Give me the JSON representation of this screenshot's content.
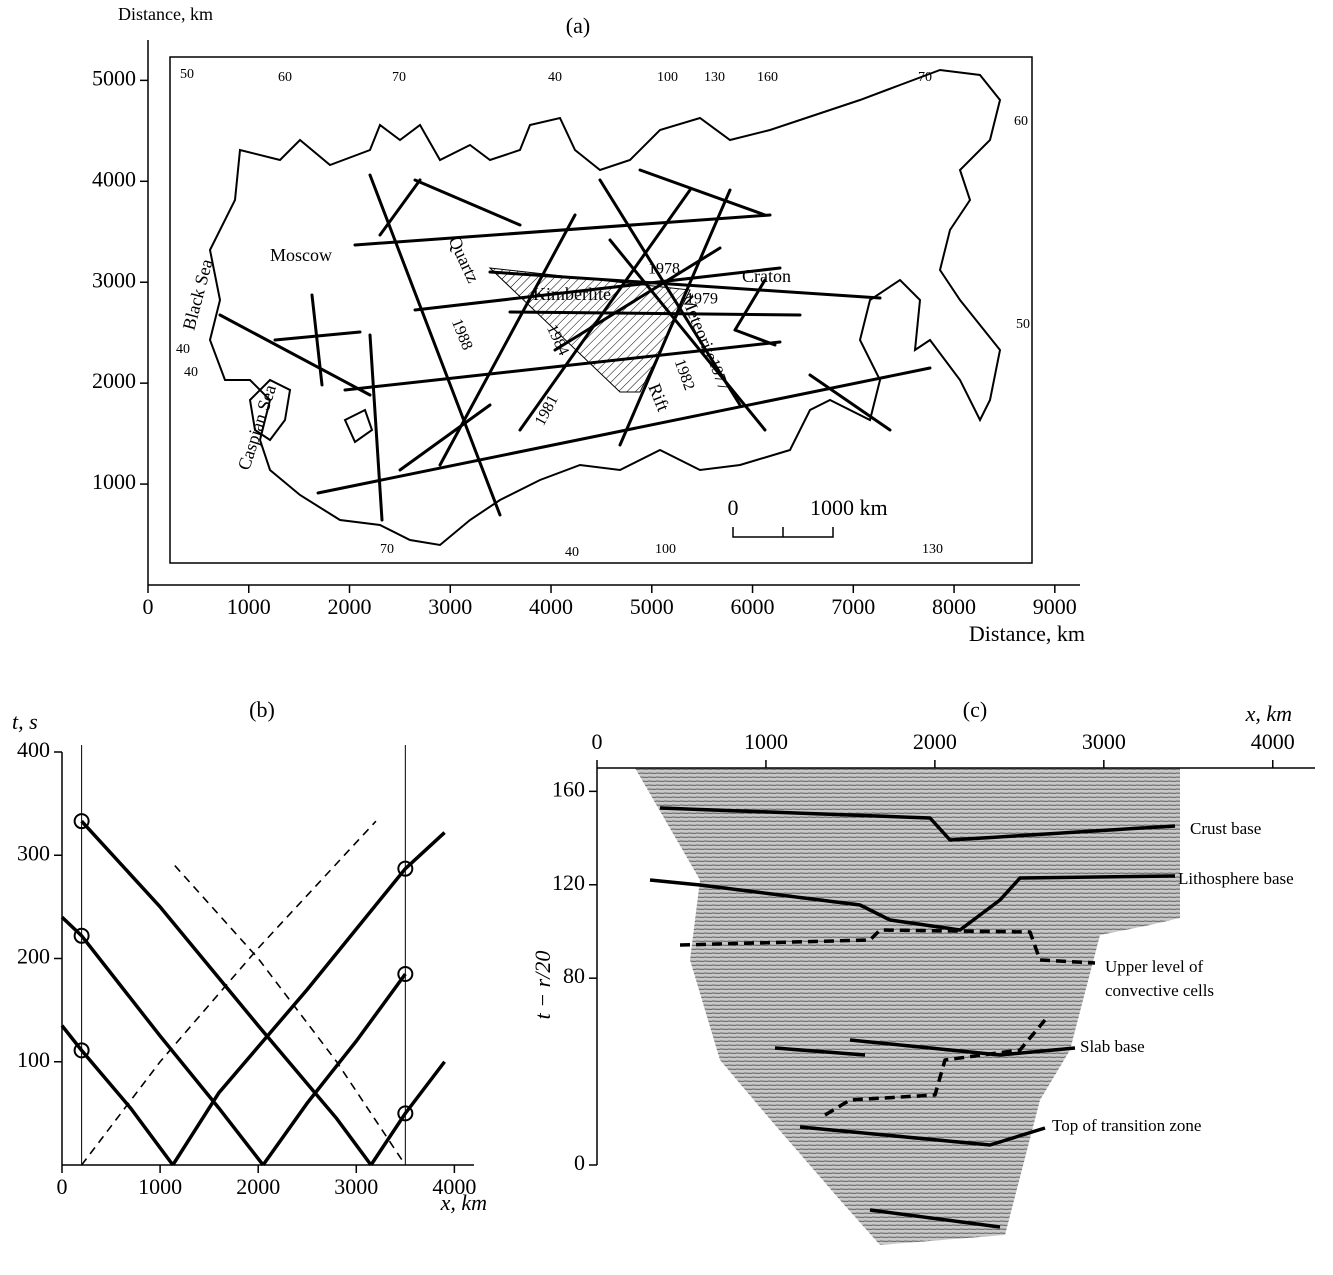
{
  "chart_data": [
    {
      "type": "map",
      "title": "(a)",
      "xlabel": "Distance, km",
      "ylabel": "Distance, km",
      "xlim": [
        0,
        9250
      ],
      "ylim": [
        0,
        5400
      ],
      "xticks": [
        0,
        1000,
        2000,
        3000,
        4000,
        5000,
        6000,
        7000,
        8000,
        9000
      ],
      "yticks": [
        1000,
        2000,
        3000,
        4000,
        5000
      ],
      "graticule_labels": [
        "50",
        "60",
        "70",
        "40",
        "100",
        "130",
        "160",
        "70",
        "60",
        "50",
        "40",
        "40",
        "70",
        "40",
        "100",
        "130"
      ],
      "place_labels": [
        "Moscow",
        "Black Sea",
        "Caspian Sea",
        "Craton",
        "Quartz",
        "Kimberlite",
        "Meteorite",
        "Rift"
      ],
      "profile_labels": [
        "1988",
        "1981",
        "1984",
        "1978",
        "1979",
        "1977",
        "1982"
      ],
      "scale_labels": [
        "0",
        "1000 km"
      ]
    },
    {
      "type": "line",
      "title": "(b)",
      "xlabel": "x, km",
      "ylabel": "t, s",
      "xlim": [
        0,
        4200
      ],
      "ylim": [
        0,
        400
      ],
      "xticks": [
        0,
        1000,
        2000,
        3000,
        4000
      ],
      "yticks": [
        100,
        200,
        300,
        400
      ],
      "source_x": [
        200,
        3500
      ],
      "series": [
        {
          "color": "#000000",
          "dash": false,
          "x": [
            200,
            1000,
            2000,
            2800,
            3150
          ],
          "values": [
            333,
            250,
            135,
            45,
            0
          ]
        },
        {
          "color": "#000000",
          "dash": false,
          "x": [
            0,
            200,
            1000,
            1600,
            2050
          ],
          "values": [
            240,
            222,
            125,
            55,
            0
          ]
        },
        {
          "color": "#000000",
          "dash": false,
          "x": [
            0,
            200,
            700,
            1130
          ],
          "values": [
            135,
            111,
            55,
            0
          ]
        },
        {
          "color": "#000000",
          "dash": false,
          "x": [
            1130,
            1600,
            2500,
            3500,
            3900
          ],
          "values": [
            0,
            70,
            170,
            287,
            322
          ]
        },
        {
          "color": "#000000",
          "dash": false,
          "x": [
            2050,
            2500,
            3000,
            3500
          ],
          "values": [
            0,
            60,
            120,
            185
          ]
        },
        {
          "color": "#000000",
          "dash": false,
          "x": [
            3150,
            3500,
            3900
          ],
          "values": [
            0,
            50,
            100
          ]
        },
        {
          "color": "#000000",
          "dash": true,
          "x": [
            200,
            1000,
            2000,
            3200
          ],
          "values": [
            0,
            100,
            210,
            333
          ]
        },
        {
          "color": "#000000",
          "dash": true,
          "x": [
            1150,
            2000,
            2800,
            3500
          ],
          "values": [
            290,
            200,
            100,
            0
          ]
        }
      ],
      "markers": {
        "color": "#000000",
        "x": [
          200,
          200,
          200,
          3500,
          3500,
          3500
        ],
        "values": [
          333,
          222,
          111,
          287,
          185,
          50
        ]
      }
    },
    {
      "type": "section",
      "title": "(c)",
      "xlabel": "x, km",
      "ylabel": "t − r/20",
      "xlim": [
        0,
        4250
      ],
      "ylim": [
        0,
        170
      ],
      "xticks": [
        0,
        1000,
        2000,
        3000,
        4000
      ],
      "yticks": [
        0,
        80,
        120,
        160
      ],
      "annotations": [
        "Crust base",
        "Lithosphere base",
        "Upper level of",
        "convective cells",
        "Slab base",
        "Top of transition zone"
      ]
    }
  ]
}
